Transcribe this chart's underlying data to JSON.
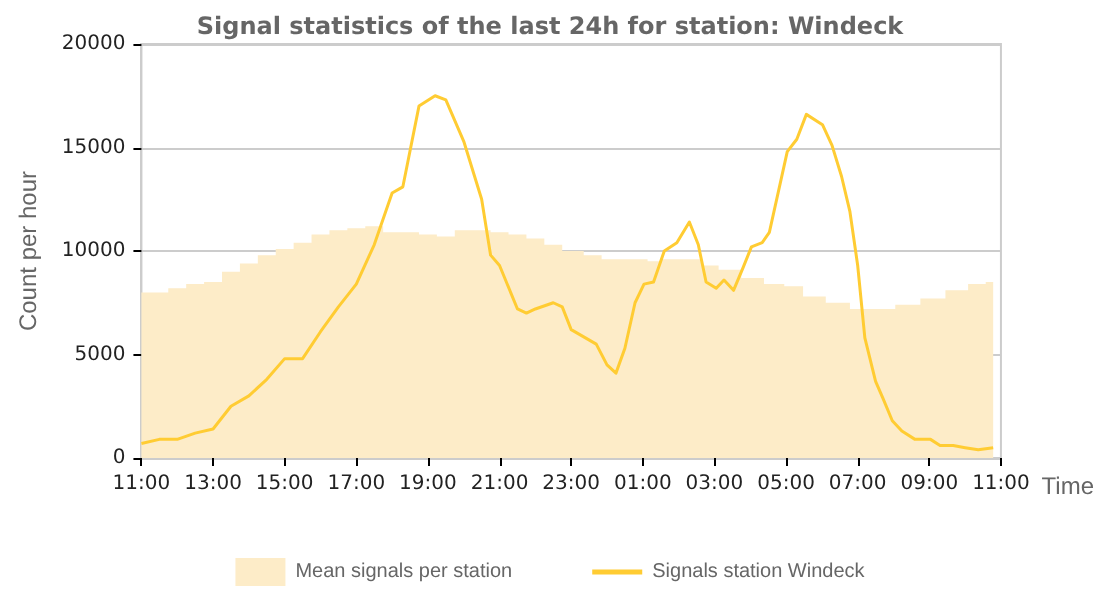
{
  "chart_data": {
    "type": "line",
    "title": "Signal statistics of the last 24h for station: Windeck",
    "xlabel": "Time",
    "ylabel": "Count per hour",
    "xlim": [
      "--01-01T11:00",
      "--01-02T11:00"
    ],
    "xticks": [
      {
        "value": "--01-01T11:00",
        "label": "11:00"
      },
      {
        "value": "--01-01T13:00",
        "label": "13:00"
      },
      {
        "value": "--01-01T15:00",
        "label": "15:00"
      },
      {
        "value": "--01-01T17:00",
        "label": "17:00"
      },
      {
        "value": "--01-01T19:00",
        "label": "19:00"
      },
      {
        "value": "--01-01T21:00",
        "label": "21:00"
      },
      {
        "value": "--01-01T23:00",
        "label": "23:00"
      },
      {
        "value": "--01-02T01:00",
        "label": "01:00"
      },
      {
        "value": "--01-02T03:00",
        "label": "03:00"
      },
      {
        "value": "--01-02T05:00",
        "label": "05:00"
      },
      {
        "value": "--01-02T07:00",
        "label": "07:00"
      },
      {
        "value": "--01-02T09:00",
        "label": "09:00"
      },
      {
        "value": "--01-02T11:00",
        "label": "11:00"
      }
    ],
    "ylim": [
      0,
      20000
    ],
    "yticks": [
      0,
      5000,
      10000,
      15000,
      20000
    ],
    "grid": "y",
    "legend": "bottom",
    "marker": "none",
    "series": [
      {
        "name": "Mean signals per station",
        "type": "area",
        "color": "#fdecc8",
        "x": [
          "--01-01T11:00",
          "--01-01T11:30",
          "--01-01T12:00",
          "--01-01T12:30",
          "--01-01T13:00",
          "--01-01T13:30",
          "--01-01T14:00",
          "--01-01T14:30",
          "--01-01T15:00",
          "--01-01T15:30",
          "--01-01T16:00",
          "--01-01T16:30",
          "--01-01T17:00",
          "--01-01T17:30",
          "--01-01T18:00",
          "--01-01T18:30",
          "--01-01T19:00",
          "--01-01T19:30",
          "--01-01T20:00",
          "--01-01T20:30",
          "--01-01T21:00",
          "--01-01T21:30",
          "--01-01T22:00",
          "--01-01T22:30",
          "--01-01T23:00",
          "--01-01T23:42",
          "--01-02T00:00",
          "--01-02T00:58",
          "--01-02T01:18",
          "--01-02T01:40",
          "--01-02T02:30",
          "--01-02T02:48",
          "--01-02T03:26",
          "--01-02T04:04",
          "--01-02T04:42",
          "--01-02T05:12",
          "--01-02T05:45",
          "--01-02T06:28",
          "--01-02T07:06",
          "--01-02T07:42",
          "--01-02T08:24",
          "--01-02T09:06",
          "--01-02T09:48",
          "--01-02T10:22",
          "--01-02T10:47"
        ],
        "values": [
          8000,
          8000,
          8200,
          8400,
          8500,
          9000,
          9400,
          9800,
          10100,
          10400,
          10800,
          11000,
          11100,
          11200,
          10900,
          10900,
          10800,
          10700,
          11000,
          11000,
          10900,
          10800,
          10600,
          10300,
          10000,
          9800,
          9600,
          9600,
          9500,
          9600,
          9600,
          9300,
          9100,
          8700,
          8400,
          8300,
          7800,
          7500,
          7200,
          7200,
          7400,
          7700,
          8100,
          8400,
          8500
        ]
      },
      {
        "name": "Signals station Windeck",
        "color": "#ffcc33",
        "x": [
          "--01-01T11:00",
          "--01-01T11:30",
          "--01-01T12:00",
          "--01-01T12:30",
          "--01-01T13:00",
          "--01-01T13:30",
          "--01-01T14:00",
          "--01-01T14:30",
          "--01-01T15:00",
          "--01-01T15:30",
          "--01-01T16:00",
          "--01-01T16:30",
          "--01-01T17:00",
          "--01-01T17:30",
          "--01-01T18:00",
          "--01-01T18:18",
          "--01-01T18:45",
          "--01-01T19:12",
          "--01-01T19:30",
          "--01-01T20:00",
          "--01-01T20:30",
          "--01-01T20:45",
          "--01-01T21:00",
          "--01-01T21:30",
          "--01-01T21:45",
          "--01-01T22:00",
          "--01-01T22:30",
          "--01-01T22:45",
          "--01-01T23:00",
          "--01-01T23:42",
          "--01-02T00:00",
          "--01-02T00:15",
          "--01-02T00:30",
          "--01-02T00:47",
          "--01-02T01:02",
          "--01-02T01:18",
          "--01-02T01:36",
          "--01-02T01:57",
          "--01-02T02:18",
          "--01-02T02:33",
          "--01-02T02:46",
          "--01-02T03:03",
          "--01-02T03:16",
          "--01-02T03:32",
          "--01-02T03:48",
          "--01-02T04:02",
          "--01-02T04:20",
          "--01-02T04:32",
          "--01-02T05:02",
          "--01-02T05:18",
          "--01-02T05:34",
          "--01-02T06:01",
          "--01-02T06:17",
          "--01-02T06:33",
          "--01-02T06:47",
          "--01-02T07:00",
          "--01-02T07:12",
          "--01-02T07:30",
          "--01-02T07:42",
          "--01-02T07:58",
          "--01-02T08:14",
          "--01-02T08:36",
          "--01-02T09:02",
          "--01-02T09:18",
          "--01-02T09:40",
          "--01-02T10:00",
          "--01-02T10:22",
          "--01-02T10:47"
        ],
        "values": [
          700,
          900,
          900,
          1200,
          1400,
          2500,
          3000,
          3800,
          4800,
          4800,
          6100,
          7300,
          8400,
          10300,
          12800,
          13100,
          17000,
          17500,
          17300,
          15300,
          12500,
          9800,
          9300,
          7200,
          7000,
          7200,
          7500,
          7300,
          6200,
          5500,
          4500,
          4100,
          5300,
          7500,
          8400,
          8500,
          10000,
          10400,
          11400,
          10300,
          8500,
          8200,
          8600,
          8100,
          9200,
          10200,
          10400,
          10900,
          14800,
          15400,
          16600,
          16100,
          15100,
          13600,
          11900,
          9300,
          5800,
          3700,
          2900,
          1800,
          1300,
          900,
          900,
          600,
          600,
          500,
          400,
          500
        ]
      }
    ]
  }
}
